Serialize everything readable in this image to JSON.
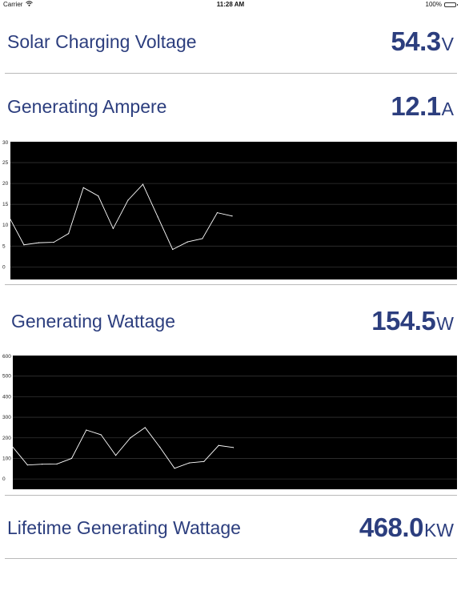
{
  "status_bar": {
    "carrier": "Carrier",
    "time": "11:28 AM",
    "battery": "100%"
  },
  "metrics": {
    "voltage": {
      "label": "Solar Charging Voltage",
      "value": "54.3",
      "unit": "V"
    },
    "ampere": {
      "label": "Generating Ampere",
      "value": "12.1",
      "unit": "A"
    },
    "wattage": {
      "label": "Generating Wattage",
      "value": "154.5",
      "unit": "W"
    },
    "lifetime": {
      "label": "Lifetime Generating Wattage",
      "value": "468.0",
      "unit": "KW"
    }
  },
  "chart_data": [
    {
      "type": "line",
      "title": "",
      "ylim": [
        -3,
        30
      ],
      "y_ticks": [
        "0",
        "5",
        "10",
        "15",
        "20",
        "25",
        "30"
      ],
      "x": [
        0,
        1,
        2,
        3,
        4,
        5,
        6,
        7,
        8,
        9,
        10,
        11,
        12,
        13,
        14,
        15
      ],
      "series": [
        {
          "values": [
            12,
            5.3,
            5.8,
            5.9,
            8,
            19,
            17,
            9.2,
            16,
            19.8,
            12,
            4.2,
            6,
            6.8,
            13,
            12.2
          ]
        }
      ],
      "colors": {
        "background": "#000000",
        "line": "#ffffff",
        "grid": "#333333"
      }
    },
    {
      "type": "line",
      "title": "",
      "ylim": [
        -50,
        600
      ],
      "y_ticks": [
        "0",
        "100",
        "200",
        "300",
        "400",
        "500",
        "600"
      ],
      "x": [
        0,
        1,
        2,
        3,
        4,
        5,
        6,
        7,
        8,
        9,
        10,
        11,
        12,
        13,
        14,
        15
      ],
      "series": [
        {
          "values": [
            155,
            68,
            72,
            73,
            100,
            238,
            215,
            115,
            200,
            250,
            155,
            52,
            78,
            85,
            163,
            153
          ]
        }
      ],
      "colors": {
        "background": "#000000",
        "line": "#ffffff",
        "grid": "#333333"
      }
    }
  ]
}
